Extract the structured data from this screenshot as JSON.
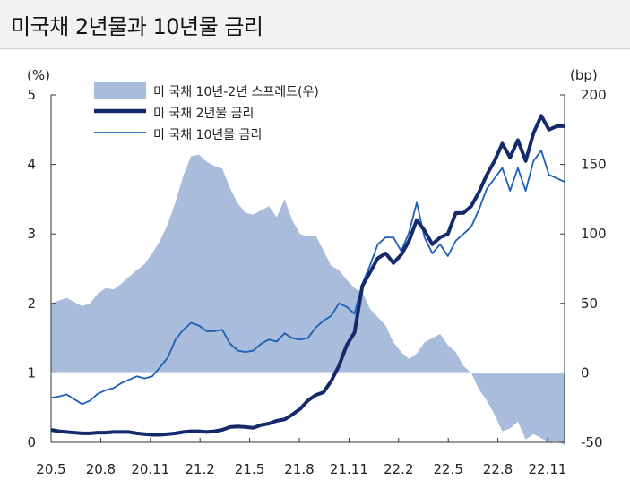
{
  "header": {
    "title": "미국채 2년물과 10년물 금리"
  },
  "chart_data": {
    "type": "line",
    "title": "미국채 2년물과 10년물 금리",
    "left_unit": "(%)",
    "right_unit": "(bp)",
    "ylim_left": [
      0,
      5
    ],
    "ylim_right": [
      -50,
      200
    ],
    "yticks_left": [
      "0",
      "1",
      "2",
      "3",
      "4",
      "5"
    ],
    "yticks_right": [
      "-50",
      "0",
      "50",
      "100",
      "150",
      "200"
    ],
    "x_ticks": [
      "20.5",
      "20.8",
      "20.11",
      "21.2",
      "21.5",
      "21.8",
      "21.11",
      "22.2",
      "22.5",
      "22.8",
      "22.11"
    ],
    "legend": [
      "미 국채 10년-2년 스프레드(우)",
      "미 국채 2년물 금리",
      "미 국채 10년물 금리"
    ],
    "x": [
      0,
      0.5,
      1,
      1.5,
      2,
      2.5,
      3,
      3.5,
      4,
      4.5,
      5,
      5.5,
      6,
      6.5,
      7,
      7.5,
      8,
      8.5,
      9,
      9.5,
      10,
      10.5,
      11,
      11.5,
      12,
      12.5,
      13,
      13.5,
      14,
      14.5,
      15,
      15.5,
      16,
      16.5,
      17,
      17.5,
      18,
      18.5,
      19,
      19.5,
      20,
      20.5,
      21,
      21.5,
      22,
      22.5,
      23,
      23.5,
      24,
      24.5,
      25,
      25.5,
      26,
      26.5,
      27,
      27.5,
      28,
      28.5,
      29,
      29.5,
      30,
      30.5,
      31,
      31.5,
      32,
      32.5,
      33
    ],
    "series": [
      {
        "name": "미 국채 10년-2년 스프레드(우)",
        "axis": "right",
        "values": [
          50,
          52,
          54,
          51,
          48,
          50,
          57,
          61,
          60,
          64,
          69,
          74,
          78,
          86,
          95,
          107,
          123,
          142,
          156,
          157,
          152,
          149,
          147,
          133,
          122,
          115,
          114,
          117,
          120,
          112,
          125,
          110,
          100,
          98,
          99,
          88,
          77,
          74,
          67,
          61,
          58,
          46,
          40,
          34,
          22,
          15,
          10,
          14,
          22,
          25,
          28,
          20,
          15,
          5,
          0,
          -12,
          -20,
          -30,
          -42,
          -40,
          -35,
          -48,
          -44,
          -47,
          -50,
          -49,
          -52
        ]
      },
      {
        "name": "미 국채 2년물 금리",
        "axis": "left",
        "values": [
          0.18,
          0.16,
          0.15,
          0.14,
          0.13,
          0.13,
          0.14,
          0.14,
          0.15,
          0.15,
          0.15,
          0.13,
          0.12,
          0.11,
          0.11,
          0.12,
          0.13,
          0.15,
          0.16,
          0.16,
          0.15,
          0.16,
          0.18,
          0.22,
          0.23,
          0.22,
          0.21,
          0.25,
          0.27,
          0.31,
          0.33,
          0.4,
          0.48,
          0.6,
          0.68,
          0.72,
          0.88,
          1.1,
          1.4,
          1.58,
          2.25,
          2.45,
          2.65,
          2.72,
          2.58,
          2.7,
          2.9,
          3.2,
          3.05,
          2.85,
          2.95,
          3.0,
          3.3,
          3.3,
          3.4,
          3.6,
          3.85,
          4.05,
          4.3,
          4.1,
          4.35,
          4.05,
          4.45,
          4.7,
          4.5,
          4.55,
          4.55
        ]
      },
      {
        "name": "미 국채 10년물 금리",
        "axis": "left",
        "values": [
          0.64,
          0.66,
          0.69,
          0.62,
          0.55,
          0.6,
          0.7,
          0.75,
          0.78,
          0.85,
          0.9,
          0.95,
          0.92,
          0.95,
          1.08,
          1.22,
          1.48,
          1.62,
          1.72,
          1.68,
          1.6,
          1.6,
          1.62,
          1.42,
          1.32,
          1.3,
          1.32,
          1.42,
          1.48,
          1.45,
          1.57,
          1.5,
          1.48,
          1.5,
          1.65,
          1.75,
          1.82,
          2.0,
          1.95,
          1.85,
          2.28,
          2.55,
          2.85,
          2.95,
          2.95,
          2.75,
          3.02,
          3.45,
          2.95,
          2.72,
          2.85,
          2.68,
          2.9,
          3.0,
          3.1,
          3.35,
          3.65,
          3.8,
          3.95,
          3.62,
          3.95,
          3.62,
          4.05,
          4.2,
          3.85,
          3.8,
          3.75
        ]
      }
    ]
  }
}
